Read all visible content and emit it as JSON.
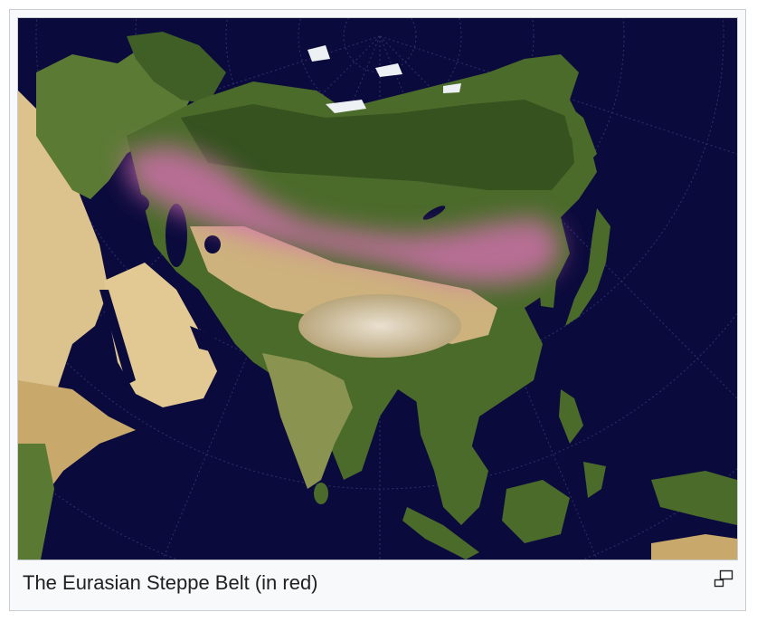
{
  "figure": {
    "caption": "The Eurasian Steppe Belt (in red)",
    "icons": {
      "enlarge": "magnify-clip-icon"
    },
    "colors": {
      "ocean": "#0b0a3c",
      "forest": "#4b6b2c",
      "desert": "#d8c08a",
      "steppe_highlight": "#d46fb0",
      "ice": "#f2f4f5"
    }
  }
}
